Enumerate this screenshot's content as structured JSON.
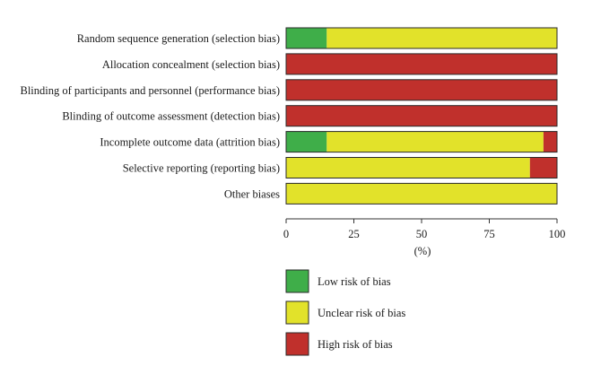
{
  "chart_data": {
    "type": "bar",
    "orientation": "horizontal",
    "stacked": true,
    "categories": [
      "Random sequence generation (selection bias)",
      "Allocation concealment (selection bias)",
      "Blinding of participants and personnel (performance bias)",
      "Blinding of outcome assessment (detection bias)",
      "Incomplete outcome data (attrition bias)",
      "Selective reporting (reporting bias)",
      "Other biases"
    ],
    "series": [
      {
        "name": "Low risk of bias",
        "color": "#3fae49",
        "values": [
          15,
          0,
          0,
          0,
          15,
          0,
          0
        ]
      },
      {
        "name": "Unclear risk of bias",
        "color": "#e2e22a",
        "values": [
          85,
          0,
          0,
          0,
          80,
          90,
          100
        ]
      },
      {
        "name": "High risk of bias",
        "color": "#c0302c",
        "values": [
          0,
          100,
          100,
          100,
          5,
          10,
          0
        ]
      }
    ],
    "xlim": [
      0,
      100
    ],
    "xticks": [
      "0",
      "25",
      "50",
      "75",
      "100"
    ],
    "xlabel": "(%)",
    "ylabel": "",
    "grid": false,
    "legend_position": "bottom"
  }
}
